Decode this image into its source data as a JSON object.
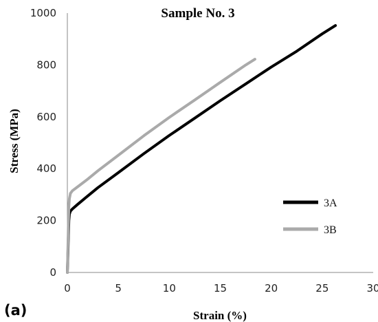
{
  "panel_label": "(a)",
  "chart_data": {
    "type": "line",
    "title": "Sample No. 3",
    "xlabel": "Strain (%)",
    "ylabel": "Stress (MPa)",
    "xlim": [
      0,
      30
    ],
    "ylim": [
      0,
      1000
    ],
    "xticks": [
      0,
      5,
      10,
      15,
      20,
      25,
      30
    ],
    "yticks": [
      0,
      200,
      400,
      600,
      800,
      1000
    ],
    "grid": false,
    "legend_position": "right",
    "series": [
      {
        "name": "3A",
        "color": "#000000",
        "x": [
          0,
          0.05,
          0.1,
          0.15,
          0.2,
          0.3,
          0.5,
          1,
          2,
          3,
          5,
          7.5,
          10,
          12.5,
          15,
          17.5,
          20,
          22.5,
          25,
          26.3
        ],
        "y": [
          0,
          60,
          140,
          200,
          225,
          237,
          245,
          262,
          295,
          327,
          385,
          458,
          528,
          595,
          662,
          727,
          792,
          853,
          920,
          952
        ]
      },
      {
        "name": "3B",
        "color": "#aaaaaa",
        "x": [
          0,
          0.05,
          0.1,
          0.15,
          0.2,
          0.3,
          0.5,
          1,
          2,
          3,
          5,
          7.5,
          10,
          12.5,
          15,
          17.5,
          18.4
        ],
        "y": [
          0,
          80,
          180,
          255,
          285,
          305,
          315,
          330,
          360,
          392,
          452,
          527,
          598,
          665,
          733,
          800,
          822
        ]
      }
    ]
  }
}
